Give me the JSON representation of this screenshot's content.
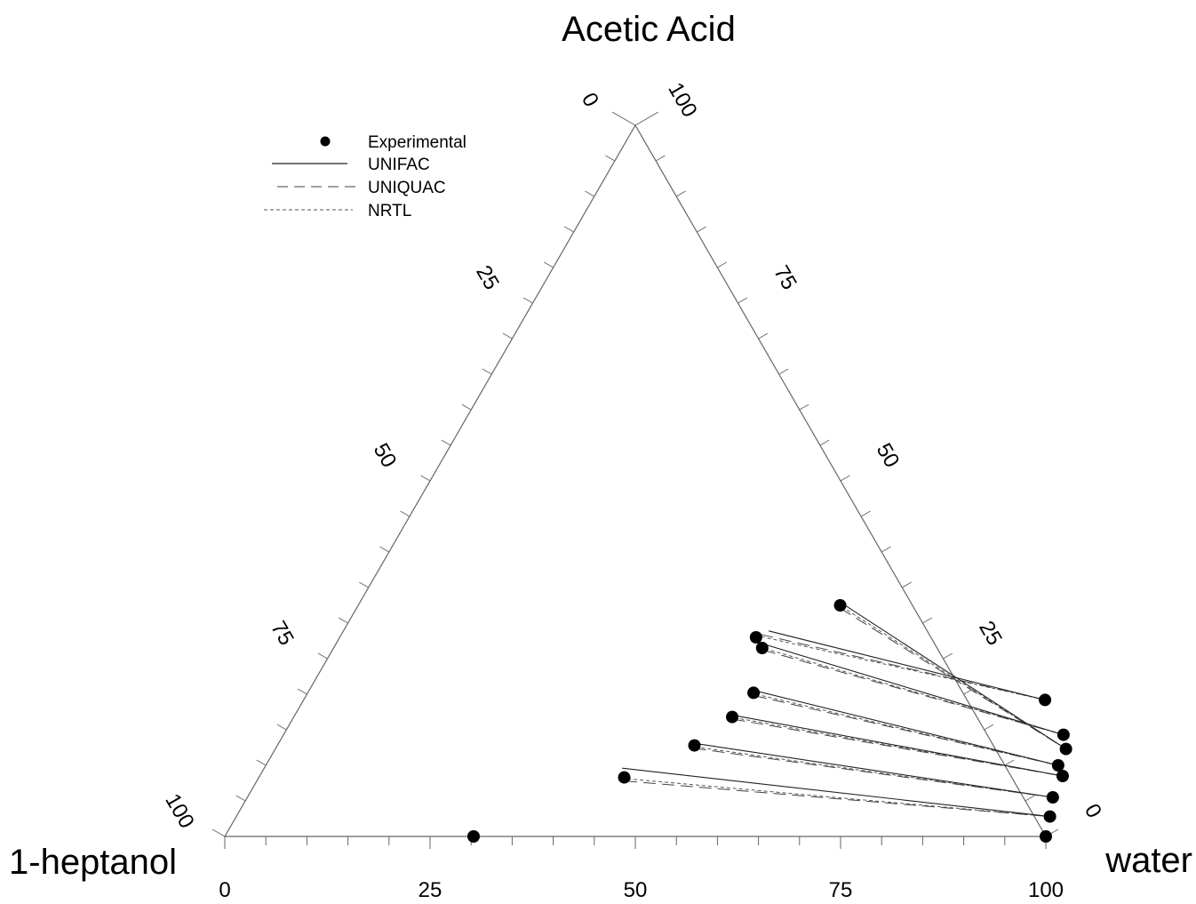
{
  "chart_data": {
    "type": "scatter",
    "plot_kind": "ternary",
    "vertices": {
      "top": "Acetic Acid",
      "left": "1-heptanol",
      "right": "water"
    },
    "tick_values": [
      0,
      25,
      50,
      75,
      100
    ],
    "tick_labels": {
      "bottom": [
        "0",
        "25",
        "50",
        "75",
        "100"
      ],
      "left": [
        "100",
        "75",
        "50",
        "25",
        "0"
      ],
      "right": [
        "0",
        "25",
        "50",
        "75",
        "100"
      ]
    },
    "minor_tick_step": 5,
    "legend": {
      "placement": "top-left",
      "entries": [
        {
          "label": "Experimental",
          "style": "marker"
        },
        {
          "label": "UNIFAC",
          "style": "solid"
        },
        {
          "label": "UNIQUAC",
          "style": "long-dash"
        },
        {
          "label": "NRTL",
          "style": "short-dash"
        }
      ]
    },
    "point_fields": [
      "water",
      "acetic_acid"
    ],
    "heptanol_rich_phase": [
      [
        30.3,
        0.0
      ],
      [
        50.7,
        28.0
      ],
      [
        52.2,
        26.5
      ],
      [
        58.7,
        32.5
      ],
      [
        54.3,
        20.2
      ],
      [
        53.4,
        16.8
      ],
      [
        50.8,
        12.8
      ],
      [
        44.5,
        8.3
      ]
    ],
    "water_rich_phase": [
      [
        100.0,
        0.0
      ],
      [
        90.3,
        19.2
      ],
      [
        95.0,
        14.3
      ],
      [
        96.3,
        12.3
      ],
      [
        96.5,
        10.0
      ],
      [
        97.8,
        8.5
      ],
      [
        98.1,
        5.5
      ],
      [
        99.1,
        2.8
      ]
    ],
    "model_offsets": {
      "UNIFAC": [
        [
          0,
          0
        ],
        [
          1.1,
          0.9
        ],
        [
          -0.6,
          0.7
        ],
        [
          -0.5,
          0.6
        ],
        [
          -0.4,
          0.4
        ],
        [
          -0.3,
          0.3
        ],
        [
          -0.2,
          0.3
        ],
        [
          -0.9,
          1.3
        ]
      ],
      "UNIQUAC": [
        [
          0,
          0
        ],
        [
          0.4,
          0.4
        ],
        [
          0.3,
          -0.3
        ],
        [
          0.2,
          -0.4
        ],
        [
          0.3,
          -0.4
        ],
        [
          0.2,
          -0.3
        ],
        [
          0.1,
          -0.4
        ],
        [
          0.3,
          -0.5
        ]
      ],
      "NRTL": [
        [
          0,
          0
        ],
        [
          0.6,
          0.1
        ],
        [
          0.4,
          -0.1
        ],
        [
          0.3,
          -0.2
        ],
        [
          0.4,
          -0.2
        ],
        [
          0.3,
          -0.1
        ],
        [
          0.2,
          -0.2
        ],
        [
          0.5,
          -0.2
        ]
      ]
    },
    "colors": {
      "axis": "#666666",
      "marker": "#000000",
      "UNIFAC": "#222222",
      "UNIQUAC": "#444444",
      "NRTL": "#555555"
    }
  }
}
